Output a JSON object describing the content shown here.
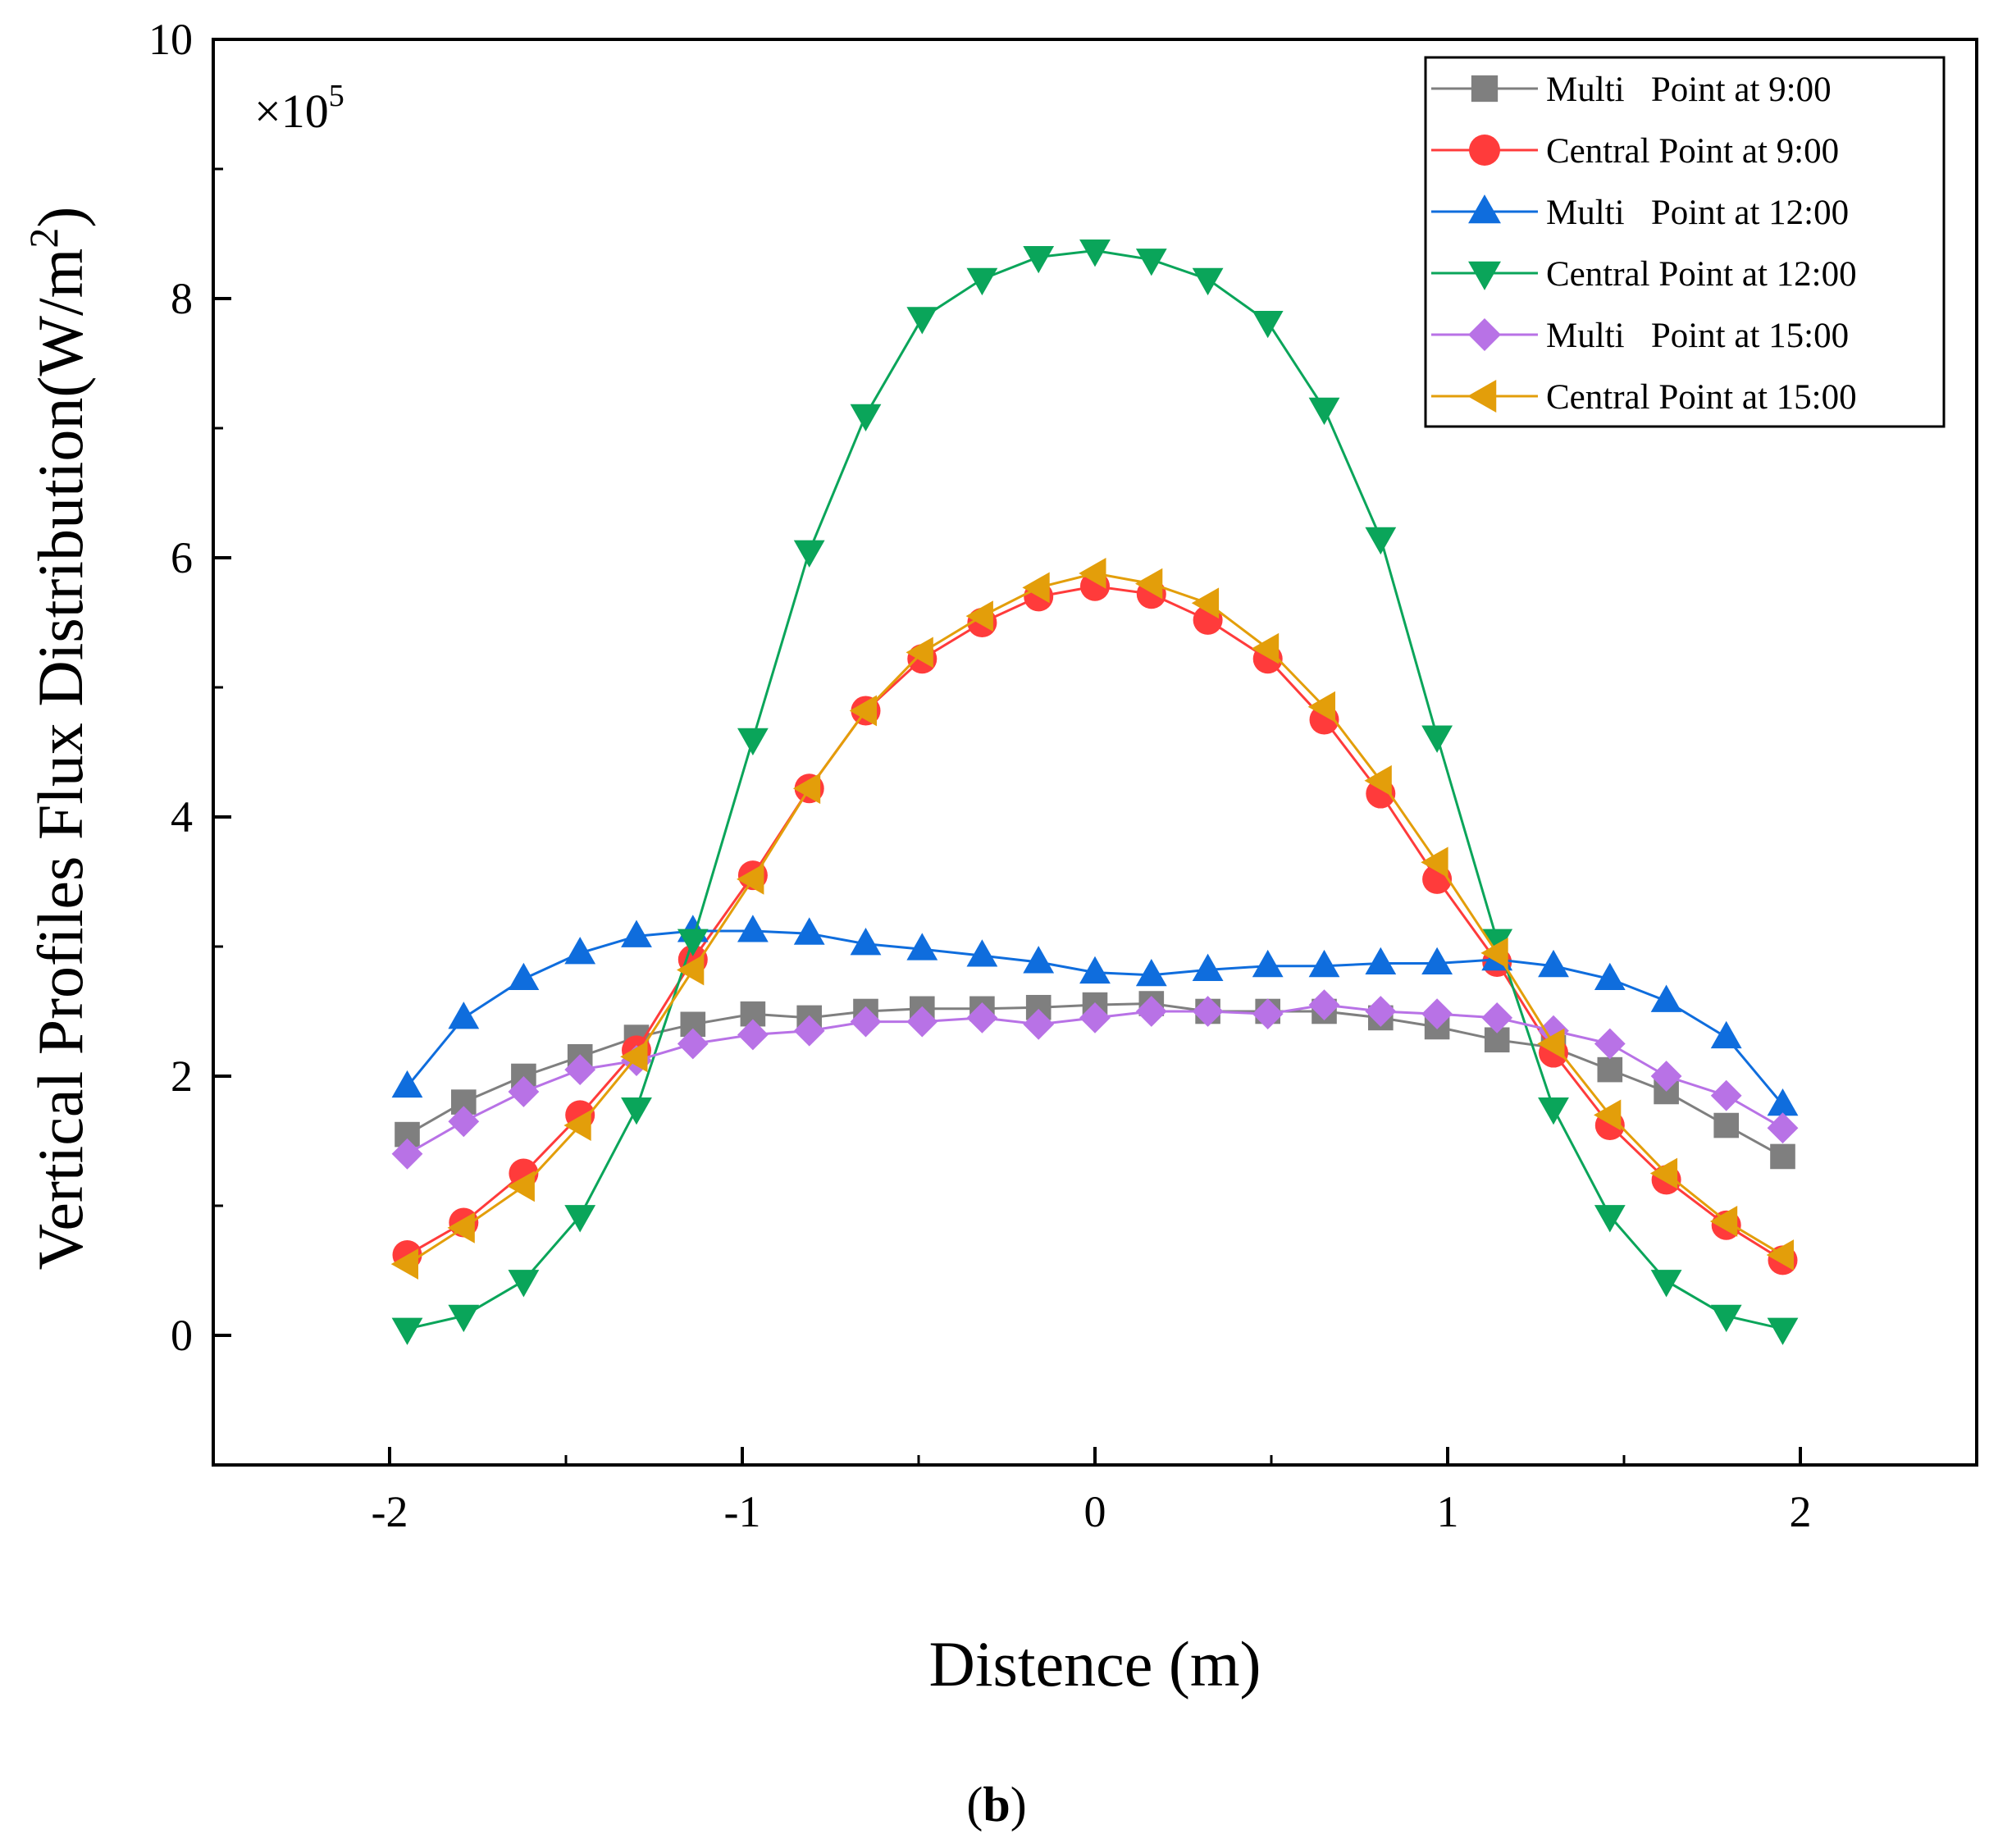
{
  "chart_data": {
    "type": "line",
    "title": "",
    "xlabel": "Distence (m)",
    "ylabel": "Vertical Profiles Flux Distribution(W/m",
    "ylabel_superscript": "2",
    "ylabel_suffix": ")",
    "multiplier_base": "×10",
    "multiplier_exp": "5",
    "caption_open": "(",
    "caption_bold": "b",
    "caption_close": ")",
    "xlim": [
      -2.5,
      2.5
    ],
    "ylim": [
      -1,
      10
    ],
    "xticks": [
      -2,
      -1,
      0,
      1,
      2
    ],
    "xtick_labels": [
      "-2",
      "-1",
      "0",
      "1",
      "2"
    ],
    "xticks_minor": [
      -1.5,
      -0.5,
      0.5,
      1.5
    ],
    "yticks": [
      0,
      2,
      4,
      6,
      8,
      10
    ],
    "ytick_labels": [
      "0",
      "2",
      "4",
      "6",
      "8",
      "10"
    ],
    "yticks_minor": [
      1,
      3,
      5,
      7,
      9
    ],
    "legend_position": "top-right",
    "x": [
      -1.95,
      -1.79,
      -1.62,
      -1.46,
      -1.3,
      -1.14,
      -0.97,
      -0.81,
      -0.65,
      -0.49,
      -0.32,
      -0.16,
      0.0,
      0.16,
      0.32,
      0.49,
      0.65,
      0.81,
      0.97,
      1.14,
      1.3,
      1.46,
      1.62,
      1.79,
      1.95
    ],
    "series": [
      {
        "name": "Multi   Point at 9:00",
        "color": "#7f7f7f",
        "marker": "square",
        "values": [
          1.55,
          1.8,
          2.0,
          2.15,
          2.3,
          2.4,
          2.48,
          2.45,
          2.5,
          2.52,
          2.52,
          2.53,
          2.55,
          2.56,
          2.5,
          2.5,
          2.5,
          2.45,
          2.38,
          2.28,
          2.22,
          2.05,
          1.88,
          1.62,
          1.38
        ]
      },
      {
        "name": "Central Point at 9:00",
        "color": "#ff3b3b",
        "marker": "circle",
        "values": [
          0.62,
          0.87,
          1.25,
          1.7,
          2.2,
          2.9,
          3.55,
          4.22,
          4.82,
          5.22,
          5.5,
          5.7,
          5.78,
          5.72,
          5.52,
          5.22,
          4.75,
          4.18,
          3.52,
          2.88,
          2.18,
          1.62,
          1.2,
          0.85,
          0.58
        ]
      },
      {
        "name": "Multi   Point at 12:00",
        "color": "#0f6ddd",
        "marker": "triangle-up",
        "values": [
          1.92,
          2.45,
          2.75,
          2.95,
          3.08,
          3.12,
          3.12,
          3.1,
          3.02,
          2.98,
          2.93,
          2.88,
          2.8,
          2.78,
          2.82,
          2.85,
          2.85,
          2.87,
          2.87,
          2.9,
          2.85,
          2.75,
          2.58,
          2.3,
          1.78
        ]
      },
      {
        "name": "Central Point at 12:00",
        "color": "#0aa55a",
        "marker": "triangle-down",
        "values": [
          0.05,
          0.15,
          0.42,
          0.92,
          1.75,
          3.05,
          4.6,
          6.05,
          7.1,
          7.85,
          8.15,
          8.32,
          8.37,
          8.3,
          8.15,
          7.82,
          7.15,
          6.15,
          4.62,
          3.05,
          1.75,
          0.92,
          0.42,
          0.15,
          0.05
        ]
      },
      {
        "name": "Multi   Point at 15:00",
        "color": "#b872e6",
        "marker": "diamond",
        "values": [
          1.4,
          1.65,
          1.88,
          2.05,
          2.12,
          2.25,
          2.32,
          2.35,
          2.42,
          2.42,
          2.45,
          2.4,
          2.45,
          2.5,
          2.5,
          2.48,
          2.55,
          2.5,
          2.48,
          2.45,
          2.35,
          2.25,
          2.0,
          1.85,
          1.6
        ]
      },
      {
        "name": "Central Point at 15:00",
        "color": "#e39e0a",
        "marker": "triangle-left",
        "values": [
          0.55,
          0.83,
          1.15,
          1.62,
          2.15,
          2.82,
          3.52,
          4.22,
          4.82,
          5.27,
          5.55,
          5.77,
          5.88,
          5.8,
          5.65,
          5.3,
          4.85,
          4.28,
          3.65,
          2.95,
          2.25,
          1.7,
          1.25,
          0.88,
          0.62
        ]
      }
    ]
  }
}
